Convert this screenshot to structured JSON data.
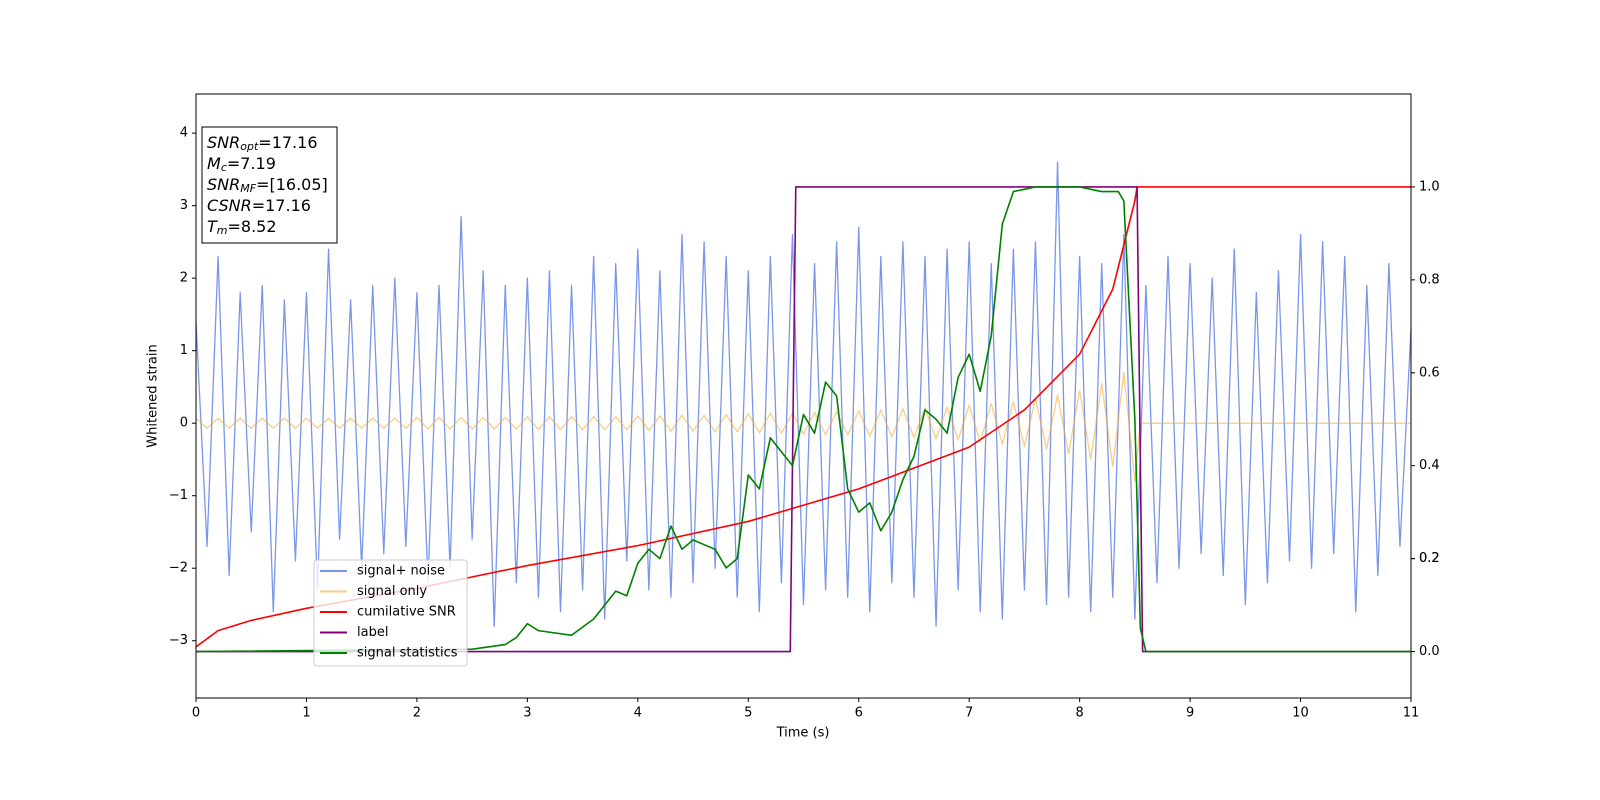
{
  "chart_data": {
    "type": "line",
    "xlabel": "Time (s)",
    "ylabel": "Whitened strain",
    "xlim": [
      0,
      11
    ],
    "xticks": [
      0,
      1,
      2,
      3,
      4,
      5,
      6,
      7,
      8,
      9,
      10,
      11
    ],
    "ylim": [
      -3.79,
      4.54
    ],
    "yticks": [
      {
        "value": -3,
        "label": "−3"
      },
      {
        "value": -2,
        "label": "−2"
      },
      {
        "value": -1,
        "label": "−1"
      },
      0,
      1,
      2,
      3,
      4
    ],
    "y2lim": [
      -0.1,
      1.2
    ],
    "y2ticks": [
      {
        "value": 0,
        "label": "0.0"
      },
      0.2,
      0.4,
      0.6,
      0.8,
      {
        "value": 1,
        "label": "1.0"
      },
      0.2
    ],
    "annotations": [
      {
        "symbol": "SNR",
        "sub": "opt",
        "text": "=17.16"
      },
      {
        "symbol": "M",
        "sub": "c",
        "text": "=7.19"
      },
      {
        "symbol": "SNR",
        "sub": "MF",
        "text": "=[16.05]"
      },
      {
        "symbol": "CSNR",
        "text": "=17.16"
      },
      {
        "symbol": "T",
        "sub": "m",
        "text": "=8.52"
      }
    ],
    "series": [
      {
        "name": "signal+ noise",
        "color": "#4169e1",
        "alpha": 0.7,
        "x": [
          0,
          0.1,
          0.2,
          0.3,
          0.4,
          0.5,
          0.6,
          0.7,
          0.8,
          0.9,
          1,
          1.1,
          1.2,
          1.3,
          1.4,
          1.5,
          1.6,
          1.7,
          1.8,
          1.9,
          2,
          2.1,
          2.2,
          2.3,
          2.4,
          2.5,
          2.6,
          2.7,
          2.8,
          2.9,
          3,
          3.1,
          3.2,
          3.3,
          3.4,
          3.5,
          3.6,
          3.7,
          3.8,
          3.9,
          4,
          4.1,
          4.2,
          4.3,
          4.4,
          4.5,
          4.6,
          4.7,
          4.8,
          4.9,
          5,
          5.1,
          5.2,
          5.3,
          5.4,
          5.5,
          5.6,
          5.7,
          5.8,
          5.9,
          6,
          6.1,
          6.2,
          6.3,
          6.4,
          6.5,
          6.6,
          6.7,
          6.8,
          6.9,
          7,
          7.1,
          7.2,
          7.3,
          7.4,
          7.5,
          7.6,
          7.7,
          7.8,
          7.9,
          8,
          8.1,
          8.2,
          8.3,
          8.4,
          8.5,
          8.6,
          8.7,
          8.8,
          8.9,
          9,
          9.1,
          9.2,
          9.3,
          9.4,
          9.5,
          9.6,
          9.7,
          9.8,
          9.9,
          10,
          10.1,
          10.2,
          10.3,
          10.4,
          10.5,
          10.6,
          10.7,
          10.8,
          10.9,
          11
        ],
        "values": [
          1.4,
          -1.7,
          2.3,
          -2.1,
          1.8,
          -1.5,
          1.9,
          -2.6,
          1.7,
          -1.9,
          1.8,
          -2.3,
          2.4,
          -1.6,
          1.7,
          -2.0,
          1.9,
          -1.8,
          2.0,
          -1.7,
          1.8,
          -2.2,
          1.9,
          -2.0,
          2.85,
          -1.6,
          2.1,
          -2.8,
          1.9,
          -2.2,
          2.0,
          -2.4,
          2.1,
          -2.6,
          1.9,
          -2.3,
          2.3,
          -2.7,
          2.2,
          -1.9,
          2.4,
          -2.3,
          2.1,
          -2.4,
          2.6,
          -2.2,
          2.5,
          -2.0,
          2.3,
          -2.4,
          2.1,
          -2.6,
          2.3,
          -2.2,
          2.6,
          -2.5,
          2.2,
          -2.3,
          2.5,
          -2.4,
          2.7,
          -2.6,
          2.3,
          -2.2,
          2.5,
          -2.4,
          2.3,
          -2.8,
          2.4,
          -2.3,
          2.5,
          -2.6,
          2.2,
          -2.7,
          2.4,
          -2.3,
          2.5,
          -2.5,
          3.6,
          -2.4,
          2.3,
          -2.6,
          2.2,
          -2.4,
          2.6,
          -2.7,
          1.9,
          -2.2,
          2.3,
          -2.0,
          2.2,
          -1.8,
          2.0,
          -2.1,
          2.4,
          -2.5,
          1.8,
          -2.2,
          2.1,
          -1.9,
          2.6,
          -2.0,
          2.5,
          -1.8,
          2.3,
          -2.6,
          1.9,
          -2.1,
          2.2,
          -1.7,
          1.3
        ]
      },
      {
        "name": "signal only",
        "color": "#f5a623",
        "alpha": 0.55,
        "x": [
          0,
          0.1,
          0.2,
          0.3,
          0.4,
          0.5,
          0.6,
          0.7,
          0.8,
          0.9,
          1,
          1.1,
          1.2,
          1.3,
          1.4,
          1.5,
          1.6,
          1.7,
          1.8,
          1.9,
          2,
          2.1,
          2.2,
          2.3,
          2.4,
          2.5,
          2.6,
          2.7,
          2.8,
          2.9,
          3,
          3.1,
          3.2,
          3.3,
          3.4,
          3.5,
          3.6,
          3.7,
          3.8,
          3.9,
          4,
          4.1,
          4.2,
          4.3,
          4.4,
          4.5,
          4.6,
          4.7,
          4.8,
          4.9,
          5,
          5.1,
          5.2,
          5.3,
          5.4,
          5.5,
          5.6,
          5.7,
          5.8,
          5.9,
          6,
          6.1,
          6.2,
          6.3,
          6.4,
          6.5,
          6.6,
          6.7,
          6.8,
          6.9,
          7,
          7.1,
          7.2,
          7.3,
          7.4,
          7.5,
          7.6,
          7.7,
          7.8,
          7.9,
          8,
          8.1,
          8.2,
          8.3,
          8.4,
          8.5,
          8.55,
          11
        ],
        "values": [
          0.07,
          -0.07,
          0.07,
          -0.07,
          0.07,
          -0.07,
          0.07,
          -0.07,
          0.07,
          -0.07,
          0.07,
          -0.07,
          0.07,
          -0.07,
          0.07,
          -0.07,
          0.07,
          -0.07,
          0.07,
          -0.07,
          0.08,
          -0.08,
          0.08,
          -0.08,
          0.08,
          -0.08,
          0.08,
          -0.08,
          0.08,
          -0.08,
          0.09,
          -0.09,
          0.09,
          -0.09,
          0.09,
          -0.09,
          0.09,
          -0.09,
          0.09,
          -0.09,
          0.1,
          -0.1,
          0.1,
          -0.11,
          0.11,
          -0.11,
          0.11,
          -0.12,
          0.12,
          -0.12,
          0.13,
          -0.13,
          0.14,
          -0.14,
          0.14,
          -0.15,
          0.15,
          -0.16,
          0.16,
          -0.16,
          0.17,
          -0.18,
          0.18,
          -0.19,
          0.2,
          -0.2,
          0.21,
          -0.22,
          0.22,
          -0.23,
          0.25,
          -0.26,
          0.27,
          -0.29,
          0.3,
          -0.32,
          0.34,
          -0.36,
          0.39,
          -0.42,
          0.45,
          -0.5,
          0.55,
          -0.6,
          0.7,
          -0.8,
          0,
          0
        ]
      },
      {
        "name": "cumilative SNR",
        "color": "#ff0000",
        "axis": "y2",
        "x": [
          0,
          0.2,
          0.5,
          1,
          2,
          3,
          4,
          5,
          6,
          7,
          7.5,
          8,
          8.3,
          8.5,
          8.52,
          11
        ],
        "values": [
          0.01,
          0.045,
          0.067,
          0.093,
          0.136,
          0.185,
          0.228,
          0.28,
          0.35,
          0.44,
          0.52,
          0.64,
          0.78,
          0.97,
          1.0,
          1.0
        ]
      },
      {
        "name": "label",
        "color": "#800080",
        "axis": "y2",
        "x": [
          0,
          5.38,
          5.43,
          8.52,
          8.57,
          11
        ],
        "values": [
          0,
          0,
          1,
          1,
          0,
          0
        ]
      },
      {
        "name": "signal statistics",
        "color": "#008000",
        "axis": "y2",
        "x": [
          0,
          2.5,
          2.8,
          2.9,
          3.0,
          3.1,
          3.4,
          3.6,
          3.8,
          3.9,
          4.0,
          4.1,
          4.2,
          4.3,
          4.4,
          4.5,
          4.7,
          4.8,
          4.9,
          5.0,
          5.1,
          5.2,
          5.3,
          5.4,
          5.5,
          5.6,
          5.7,
          5.8,
          5.9,
          6.0,
          6.1,
          6.2,
          6.3,
          6.4,
          6.5,
          6.6,
          6.7,
          6.8,
          6.9,
          7.0,
          7.1,
          7.2,
          7.3,
          7.4,
          7.6,
          8.0,
          8.2,
          8.35,
          8.4,
          8.5,
          8.55,
          8.6,
          11
        ],
        "values": [
          0,
          0.005,
          0.015,
          0.03,
          0.06,
          0.045,
          0.035,
          0.07,
          0.13,
          0.12,
          0.19,
          0.22,
          0.2,
          0.27,
          0.22,
          0.24,
          0.22,
          0.18,
          0.2,
          0.38,
          0.35,
          0.46,
          0.43,
          0.4,
          0.51,
          0.47,
          0.58,
          0.55,
          0.35,
          0.3,
          0.32,
          0.26,
          0.3,
          0.37,
          0.42,
          0.52,
          0.5,
          0.47,
          0.59,
          0.64,
          0.56,
          0.68,
          0.92,
          0.99,
          1.0,
          1.0,
          0.99,
          0.99,
          0.97,
          0.5,
          0.05,
          0.0,
          0
        ]
      }
    ]
  }
}
